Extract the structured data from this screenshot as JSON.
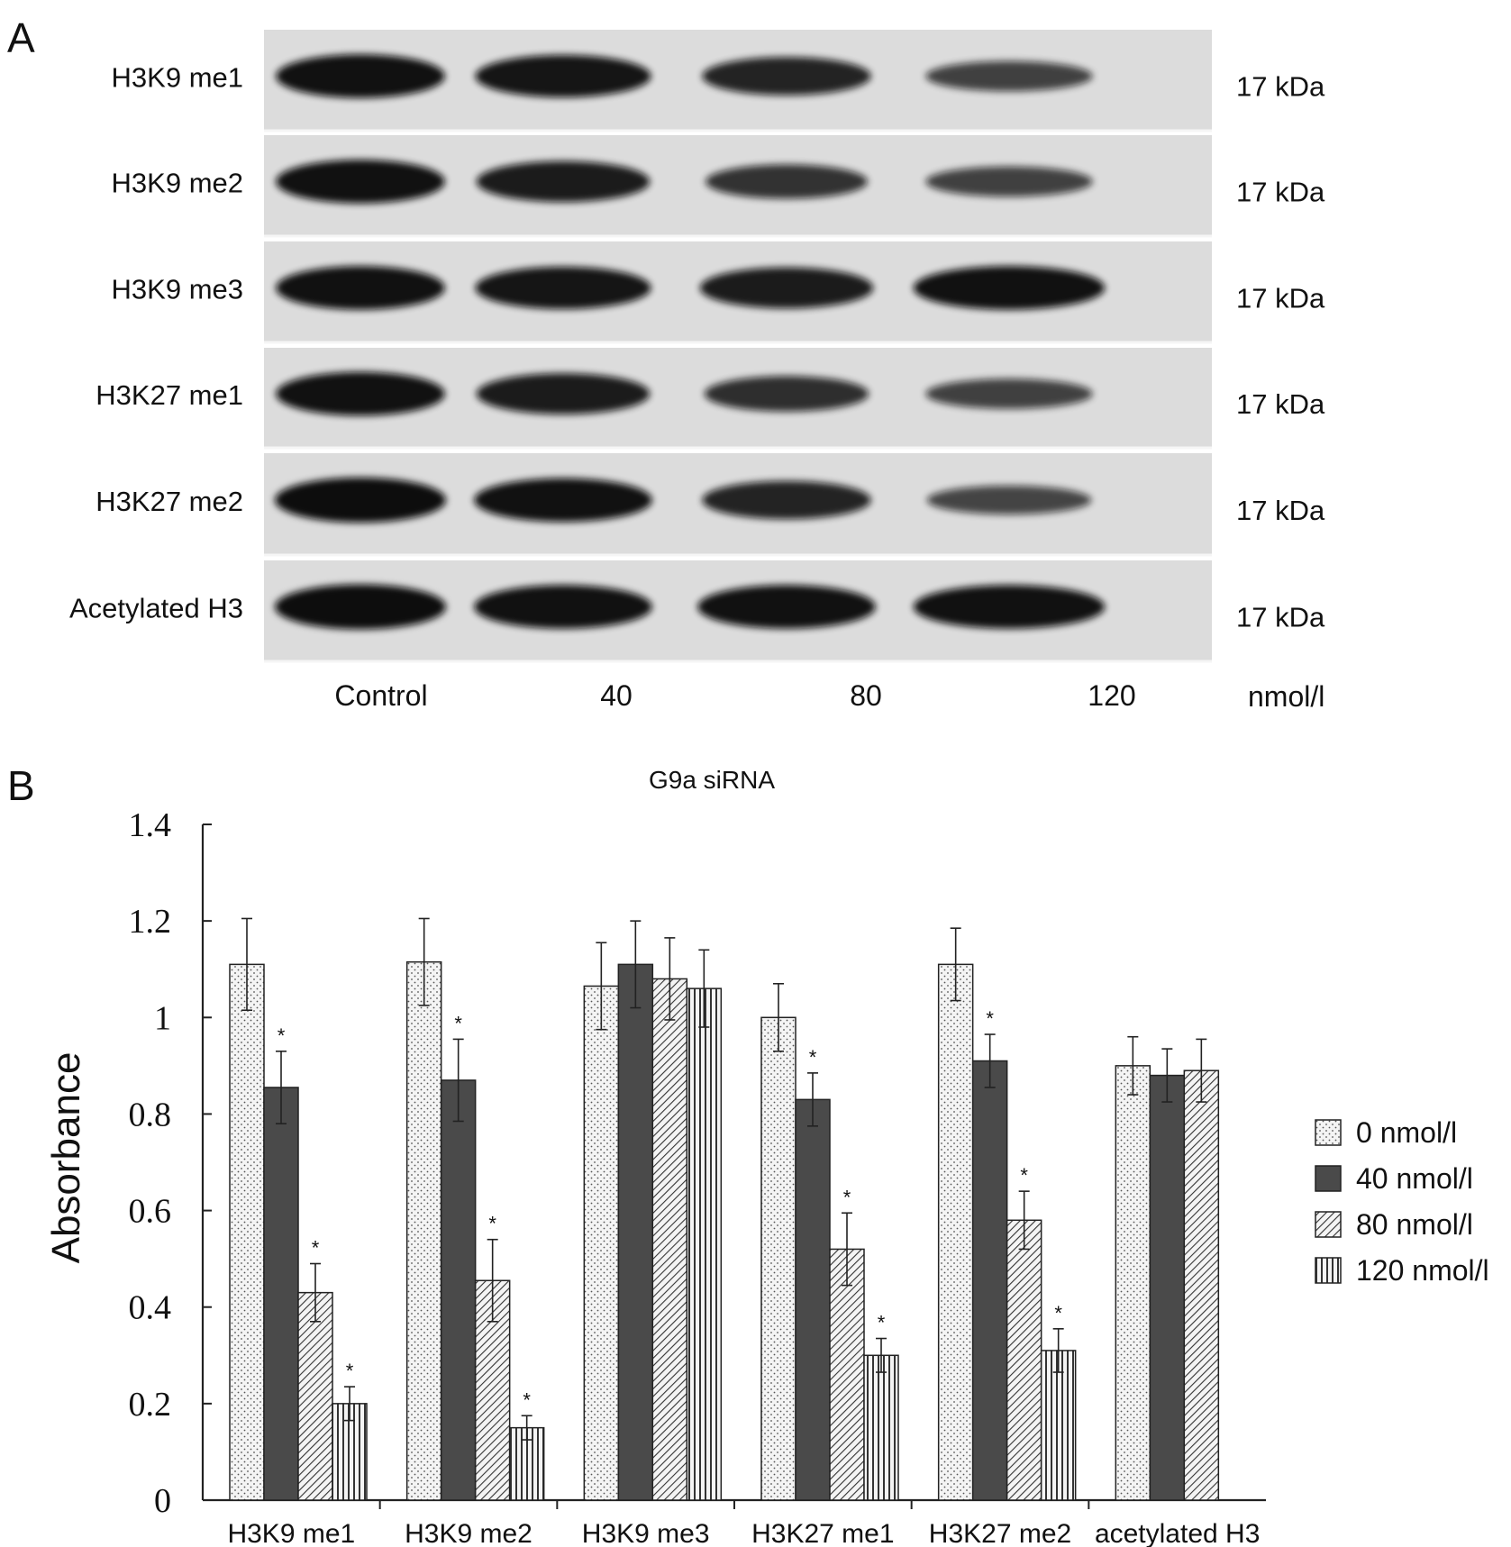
{
  "panel_a": {
    "panel_label": "A",
    "rows": [
      {
        "label": "H3K9 me1",
        "kda": "17 kDa",
        "intensity": [
          0.95,
          0.9,
          0.75,
          0.45
        ]
      },
      {
        "label": "H3K9 me2",
        "kda": "17 kDa",
        "intensity": [
          0.95,
          0.85,
          0.6,
          0.45
        ]
      },
      {
        "label": "H3K9 me3",
        "kda": "17 kDa",
        "intensity": [
          0.95,
          0.9,
          0.85,
          0.95
        ]
      },
      {
        "label": "H3K27 me1",
        "kda": "17 kDa",
        "intensity": [
          0.95,
          0.85,
          0.65,
          0.45
        ]
      },
      {
        "label": "H3K27 me2",
        "kda": "17 kDa",
        "intensity": [
          1.0,
          0.95,
          0.75,
          0.4
        ]
      },
      {
        "label": "Acetylated H3",
        "kda": "17 kDa",
        "intensity": [
          1.0,
          0.95,
          0.95,
          0.95
        ]
      }
    ],
    "lanes": [
      "Control",
      "40",
      "80",
      "120"
    ],
    "unit": "nmol/l",
    "treatment": "G9a siRNA",
    "colors": {
      "membrane": "#dcdcdc",
      "band": "#0a0a0a"
    }
  },
  "panel_b": {
    "panel_label": "B",
    "legend": [
      "0 nmol/l",
      "40 nmol/l",
      "80 nmol/l",
      "120 nmol/l"
    ],
    "significance_marker": "*"
  },
  "chart_data": {
    "type": "bar",
    "ylabel": "Absorbance",
    "xlabel": "",
    "ylim": [
      0,
      1.4
    ],
    "yticks": [
      "0",
      "0.2",
      "0.4",
      "0.6",
      "0.8",
      "1",
      "1.2",
      "1.4"
    ],
    "ytick_values": [
      0,
      0.2,
      0.4,
      0.6,
      0.8,
      1.0,
      1.2,
      1.4
    ],
    "grid": false,
    "legend_position": "right",
    "categories": [
      "H3K9 me1",
      "H3K9 me2",
      "H3K9 me3",
      "H3K27 me1",
      "H3K27 me2",
      "acetylated H3"
    ],
    "series": [
      {
        "name": "0 nmol/l",
        "pattern": "dots",
        "values": [
          1.11,
          1.115,
          1.065,
          1.0,
          1.11,
          0.9
        ],
        "errors": [
          0.095,
          0.09,
          0.09,
          0.07,
          0.075,
          0.06
        ],
        "significant": [
          false,
          false,
          false,
          false,
          false,
          false
        ]
      },
      {
        "name": "40 nmol/l",
        "pattern": "solid",
        "values": [
          0.855,
          0.87,
          1.11,
          0.83,
          0.91,
          0.88
        ],
        "errors": [
          0.075,
          0.085,
          0.09,
          0.055,
          0.055,
          0.055
        ],
        "significant": [
          true,
          true,
          false,
          true,
          true,
          false
        ]
      },
      {
        "name": "80 nmol/l",
        "pattern": "diagonal",
        "values": [
          0.43,
          0.455,
          1.08,
          0.52,
          0.58,
          0.89
        ],
        "errors": [
          0.06,
          0.085,
          0.085,
          0.075,
          0.06,
          0.065
        ],
        "significant": [
          true,
          true,
          false,
          true,
          true,
          false
        ]
      },
      {
        "name": "120 nmol/l",
        "pattern": "vertical",
        "values": [
          0.2,
          0.15,
          1.06,
          0.3,
          0.31,
          null
        ],
        "errors": [
          0.035,
          0.025,
          0.08,
          0.035,
          0.045,
          null
        ],
        "significant": [
          true,
          true,
          false,
          true,
          true,
          false
        ]
      }
    ],
    "colors": {
      "axis": "#222222",
      "solid": "#4a4a4a",
      "pattern_bg": "#f4f4f4",
      "pattern_ink": "#333333"
    }
  }
}
